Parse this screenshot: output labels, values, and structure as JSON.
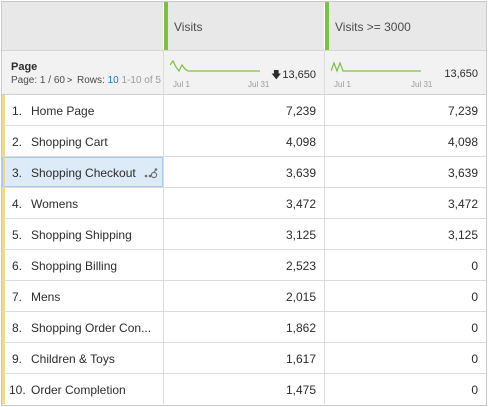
{
  "metrics": [
    {
      "name": "Visits",
      "total": "13,650",
      "date_start": "Jul 1",
      "date_end": "Jul 31",
      "sorted": true
    },
    {
      "name": "Visits >= 3000",
      "total": "13,650",
      "date_start": "Jul 1",
      "date_end": "Jul 31",
      "sorted": false
    }
  ],
  "dimension": {
    "title": "Page",
    "page_label": "Page:",
    "page_current": "1 / 60",
    "rows_label": "Rows:",
    "rows_value": "10",
    "range_text": "1-10 of 5"
  },
  "accent_color": "#7cc142",
  "rows": [
    {
      "num": "1.",
      "name": "Home Page",
      "visits": "7,239",
      "visits_3000": "7,239"
    },
    {
      "num": "2.",
      "name": "Shopping Cart",
      "visits": "4,098",
      "visits_3000": "4,098"
    },
    {
      "num": "3.",
      "name": "Shopping Checkout",
      "visits": "3,639",
      "visits_3000": "3,639"
    },
    {
      "num": "4.",
      "name": "Womens",
      "visits": "3,472",
      "visits_3000": "3,472"
    },
    {
      "num": "5.",
      "name": "Shopping Shipping",
      "visits": "3,125",
      "visits_3000": "3,125"
    },
    {
      "num": "6.",
      "name": "Shopping Billing",
      "visits": "2,523",
      "visits_3000": "0"
    },
    {
      "num": "7.",
      "name": "Mens",
      "visits": "2,015",
      "visits_3000": "0"
    },
    {
      "num": "8.",
      "name": "Shopping Order Con...",
      "visits": "1,862",
      "visits_3000": "0"
    },
    {
      "num": "9.",
      "name": "Children & Toys",
      "visits": "1,617",
      "visits_3000": "0"
    },
    {
      "num": "10.",
      "name": "Order Completion",
      "visits": "1,475",
      "visits_3000": "0"
    }
  ]
}
